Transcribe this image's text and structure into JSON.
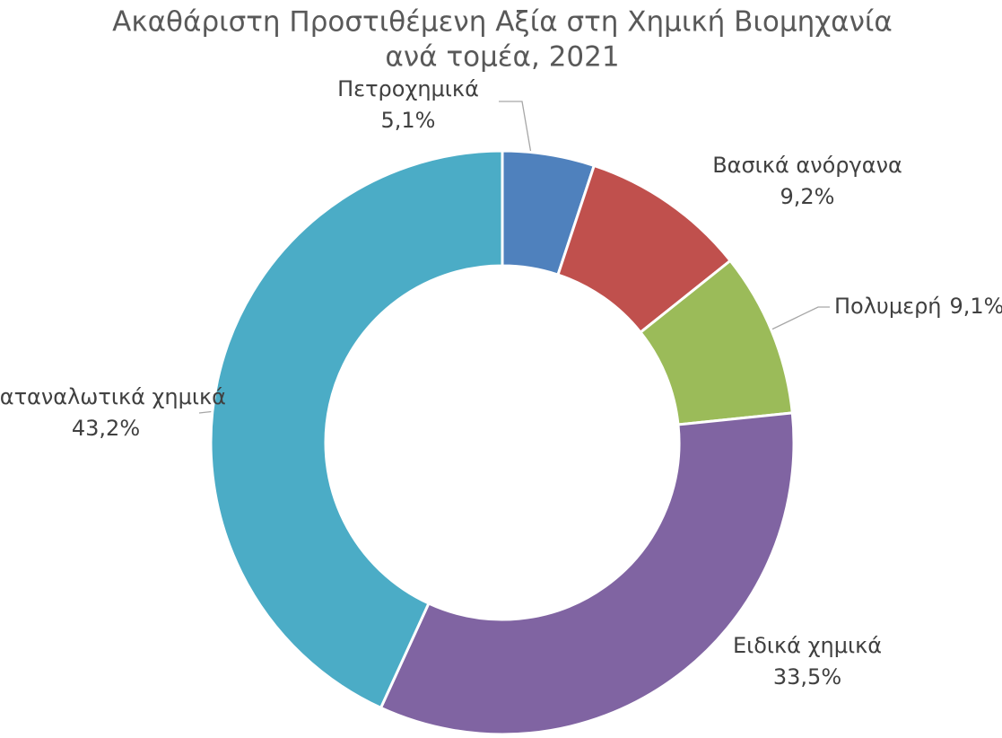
{
  "chart_data": {
    "type": "donut",
    "title": [
      "Ακαθάριστη Προστιθέμενη Αξία στη Χημική Βιομηχανία",
      "ανά τομέα, 2021"
    ],
    "categories": [
      "Πετροχημικά",
      "Βασικά ανόργανα",
      "Πολυμερή",
      "Ειδικά χημικά",
      "Καταναλωτικά χημικά"
    ],
    "values": [
      5.1,
      9.2,
      9.1,
      33.5,
      43.2
    ],
    "value_labels": [
      "5,1%",
      "9,2%",
      "9,1%",
      "33,5%",
      "43,2%"
    ],
    "colors": [
      "#4f81bd",
      "#c0504d",
      "#9bbb59",
      "#8064a2",
      "#4bacc6"
    ]
  }
}
